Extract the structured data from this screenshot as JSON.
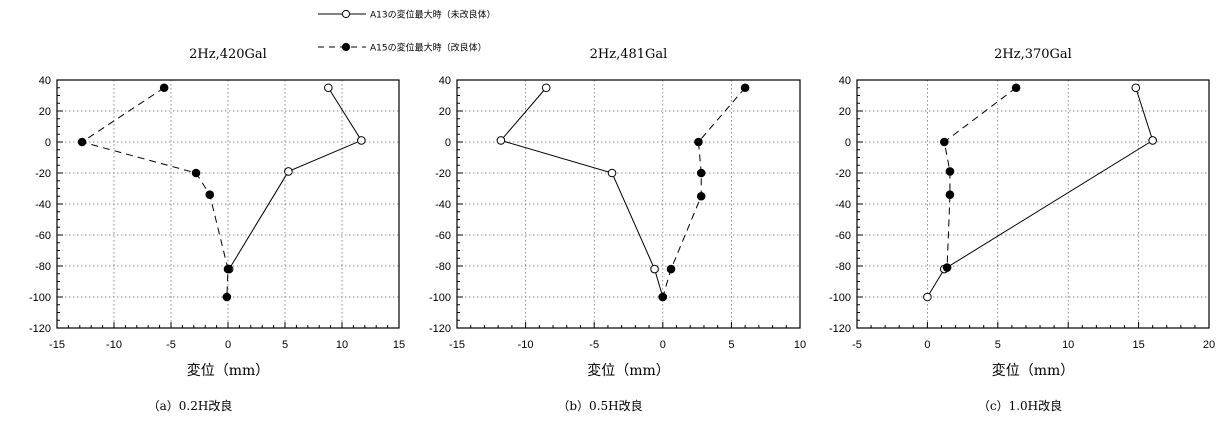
{
  "legend": [
    {
      "label": "A13の変位最大時（未改良体）",
      "style": "solid",
      "marker": "open"
    },
    {
      "label": "A15の変位最大時（改良体）",
      "style": "dashed",
      "marker": "filled"
    }
  ],
  "chart_data": [
    {
      "type": "line",
      "title": "2Hz,420Gal",
      "xlabel": "変位（mm）",
      "ylabel": "",
      "caption": "（a）0.2H改良",
      "xlim": [
        -15,
        15
      ],
      "ylim": [
        -120,
        40
      ],
      "xticks": [
        -15,
        -10,
        -5,
        0,
        5,
        10,
        15
      ],
      "yticks": [
        40,
        20,
        0,
        -20,
        -40,
        -60,
        -80,
        -100,
        -120
      ],
      "grid": true,
      "series": [
        {
          "name": "A13の変位最大時（未改良体）",
          "style": "solid",
          "marker": "open",
          "x": [
            8.8,
            11.7,
            5.3,
            0.1
          ],
          "y": [
            35,
            1,
            -19,
            -82
          ]
        },
        {
          "name": "A15の変位最大時（改良体）",
          "style": "dashed",
          "marker": "filled",
          "x": [
            -5.6,
            -12.8,
            -2.8,
            -1.6,
            0.0,
            -0.1
          ],
          "y": [
            35,
            0,
            -20,
            -34,
            -82,
            -100
          ]
        }
      ]
    },
    {
      "type": "line",
      "title": "2Hz,481Gal",
      "xlabel": "変位（mm）",
      "ylabel": "",
      "caption": "（b）0.5H改良",
      "xlim": [
        -15,
        10
      ],
      "ylim": [
        -120,
        40
      ],
      "xticks": [
        -15,
        -10,
        -5,
        0,
        5,
        10
      ],
      "yticks": [
        40,
        20,
        0,
        -20,
        -40,
        -60,
        -80,
        -100,
        -120
      ],
      "grid": true,
      "series": [
        {
          "name": "A13の変位最大時（未改良体）",
          "style": "solid",
          "marker": "open",
          "x": [
            -8.5,
            -11.8,
            -3.7,
            -0.6,
            0.0
          ],
          "y": [
            35,
            1,
            -20,
            -82,
            -100
          ]
        },
        {
          "name": "A15の変位最大時（改良体）",
          "style": "dashed",
          "marker": "filled",
          "x": [
            6.0,
            2.6,
            2.8,
            2.8,
            0.6,
            0.0
          ],
          "y": [
            35,
            0,
            -20,
            -35,
            -82,
            -100
          ]
        }
      ]
    },
    {
      "type": "line",
      "title": "2Hz,370Gal",
      "xlabel": "変位（mm）",
      "ylabel": "",
      "caption": "（c）1.0H改良",
      "xlim": [
        -5,
        20
      ],
      "ylim": [
        -120,
        40
      ],
      "xticks": [
        -5,
        0,
        5,
        10,
        15,
        20
      ],
      "yticks": [
        40,
        20,
        0,
        -20,
        -40,
        -60,
        -80,
        -100,
        -120
      ],
      "grid": true,
      "series": [
        {
          "name": "A13の変位最大時（未改良体）",
          "style": "solid",
          "marker": "open",
          "x": [
            14.8,
            16.0,
            1.2,
            0.0
          ],
          "y": [
            35,
            1,
            -82,
            -100
          ]
        },
        {
          "name": "A15の変位最大時（改良体）",
          "style": "dashed",
          "marker": "filled",
          "x": [
            6.3,
            1.2,
            1.6,
            1.6,
            1.4
          ],
          "y": [
            35,
            0,
            -19,
            -34,
            -81
          ]
        }
      ]
    }
  ]
}
